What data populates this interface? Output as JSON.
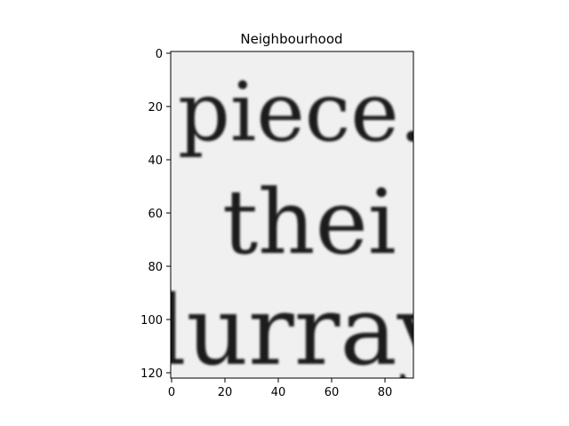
{
  "figure": {
    "title": "Neighbourhood",
    "x_ticks": [
      "0",
      "20",
      "40",
      "60",
      "80"
    ],
    "y_ticks": [
      "0",
      "20",
      "40",
      "60",
      "80",
      "100",
      "120"
    ]
  },
  "image": {
    "text_lines": [
      "piece.",
      "thei",
      "lurray"
    ],
    "colors": {
      "paper": "#f0f0f0",
      "ink": "#1a1a1a"
    }
  }
}
